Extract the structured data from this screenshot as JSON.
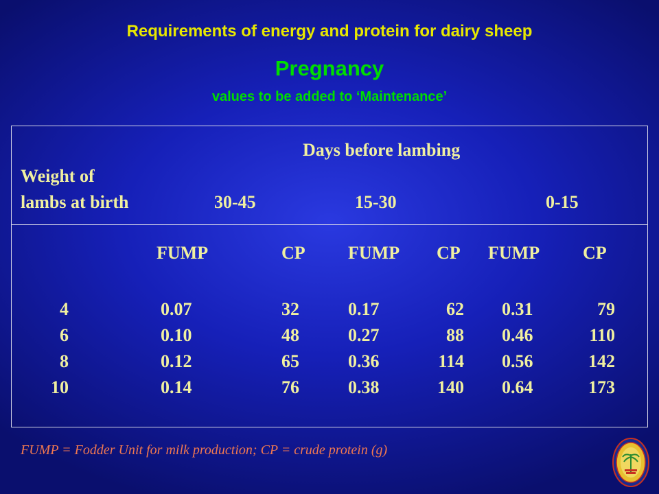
{
  "slide": {
    "title": "Requirements of energy and protein for dairy sheep",
    "subtitle": "Pregnancy",
    "subnote": "values to be added to ‘Maintenance’"
  },
  "table": {
    "group_header": "Days before lambing",
    "row_header_line1": "Weight of",
    "row_header_line2": "lambs at birth",
    "periods": [
      "30-45",
      "15-30",
      "0-15"
    ],
    "sub_headers": [
      "FUMP",
      "CP",
      "FUMP",
      "CP",
      "FUMP",
      "CP"
    ],
    "rows": [
      {
        "weight": "4",
        "cells": [
          "0.07",
          "32",
          "0.17",
          "62",
          "0.31",
          "79"
        ]
      },
      {
        "weight": "6",
        "cells": [
          "0.10",
          "48",
          "0.27",
          "88",
          "0.46",
          "110"
        ]
      },
      {
        "weight": "8",
        "cells": [
          "0.12",
          "65",
          "0.36",
          "114",
          "0.56",
          "142"
        ]
      },
      {
        "weight": "10",
        "cells": [
          "0.14",
          "76",
          "0.38",
          "140",
          "0.64",
          "173"
        ]
      }
    ]
  },
  "footnote": "FUMP = Fodder Unit for milk production; CP = crude protein (g)",
  "colors": {
    "background": "#1620b8",
    "title": "#e8e800",
    "subtitle": "#00dd00",
    "table_text": "#f0f0a0",
    "footnote": "#f07850"
  },
  "logo": {
    "icon": "university-seal-icon"
  }
}
